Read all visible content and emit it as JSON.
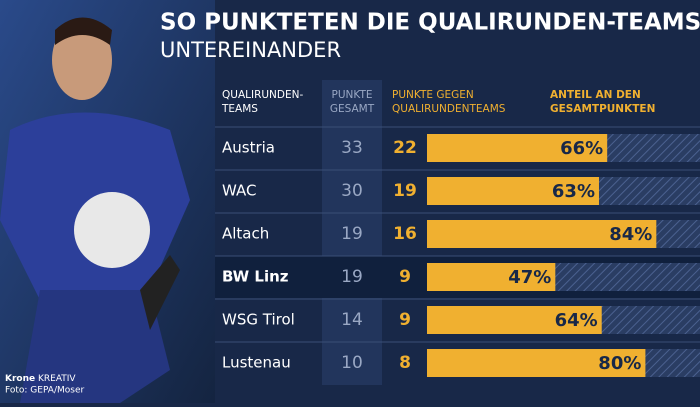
{
  "header": {
    "title": "SO PUNKTETEN DIE QUALIRUNDEN-TEAMS",
    "subtitle": "UNTEREINANDER"
  },
  "table": {
    "columns": [
      [
        "QUALIRUNDEN-",
        "TEAMS"
      ],
      [
        "PUNKTE",
        "GESAMT"
      ],
      [
        "PUNKTE GEGEN",
        "QUALIRUNDENTEAMS"
      ],
      [
        "ANTEIL AN DEN",
        "GESAMTPUNKTEN"
      ]
    ],
    "share_max": 100,
    "rows": [
      {
        "team": "Austria",
        "total": 33,
        "vs_quali": 22,
        "share": 66,
        "share_label": "66%"
      },
      {
        "team": "WAC",
        "total": 30,
        "vs_quali": 19,
        "share": 63,
        "share_label": "63%"
      },
      {
        "team": "Altach",
        "total": 19,
        "vs_quali": 16,
        "share": 84,
        "share_label": "84%"
      },
      {
        "team": "BW Linz",
        "total": 19,
        "vs_quali": 9,
        "share": 47,
        "share_label": "47%",
        "highlight": true
      },
      {
        "team": "WSG Tirol",
        "total": 14,
        "vs_quali": 9,
        "share": 64,
        "share_label": "64%"
      },
      {
        "team": "Lustenau",
        "total": 10,
        "vs_quali": 8,
        "share": 80,
        "share_label": "80%"
      }
    ]
  },
  "credits": {
    "brand": "Krone",
    "brand_suffix": "KREATIV",
    "photo": "Foto: GEPA/Moser"
  }
}
